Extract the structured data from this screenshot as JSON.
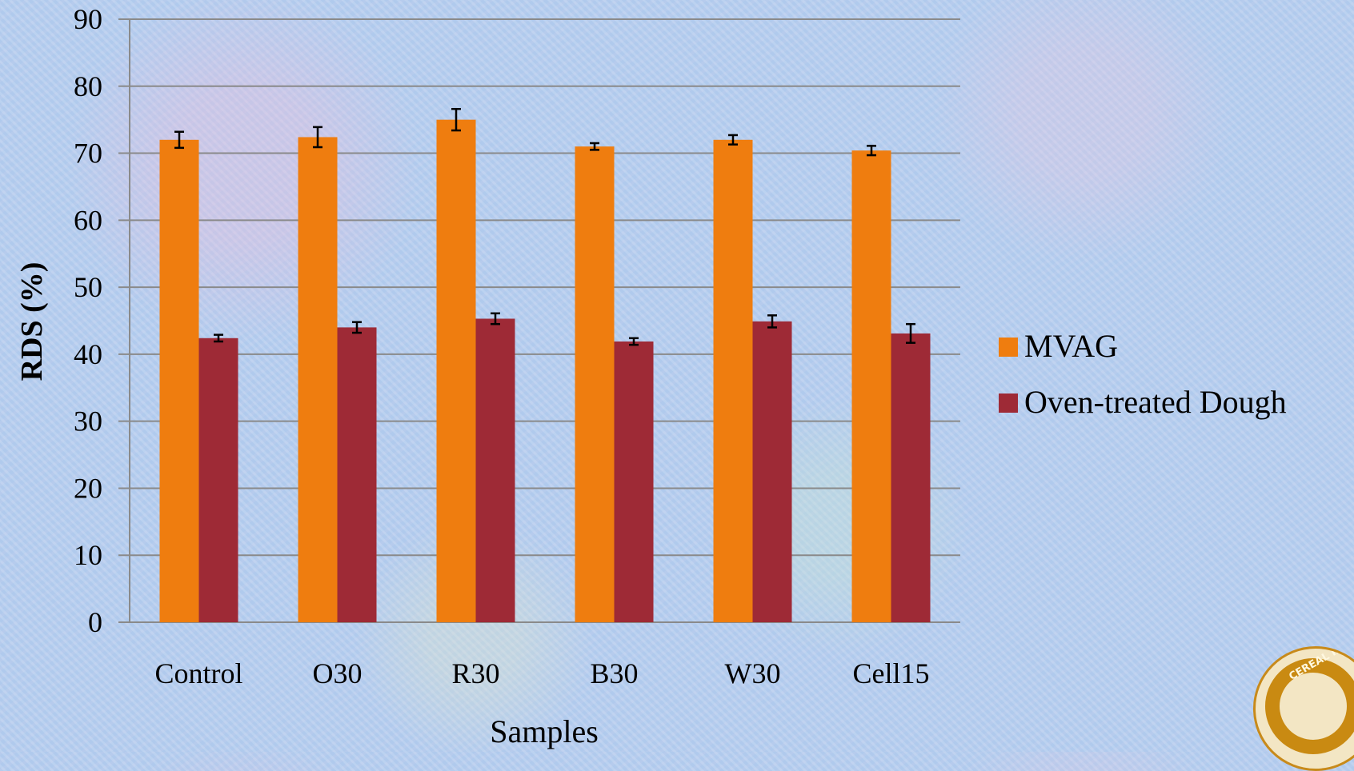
{
  "chart_data": {
    "type": "bar",
    "title": "",
    "xlabel": "Samples",
    "ylabel": "RDS (%)",
    "ylim": [
      0,
      90
    ],
    "yticks": [
      0,
      10,
      20,
      30,
      40,
      50,
      60,
      70,
      80,
      90
    ],
    "categories": [
      "Control",
      "O30",
      "R30",
      "B30",
      "W30",
      "Cell15"
    ],
    "series": [
      {
        "name": "MVAG",
        "color": "#ef7d0f",
        "values": [
          72.0,
          72.4,
          75.0,
          71.0,
          72.0,
          70.4
        ],
        "errors": [
          1.2,
          1.5,
          1.6,
          0.5,
          0.7,
          0.7
        ]
      },
      {
        "name": "Oven-treated Dough",
        "color": "#9e2a36",
        "values": [
          42.4,
          44.0,
          45.3,
          41.9,
          44.9,
          43.1
        ],
        "errors": [
          0.5,
          0.8,
          0.8,
          0.5,
          0.9,
          1.4
        ]
      }
    ],
    "grid": true,
    "legend_position": "right",
    "gridline_color": "#8a8a8a"
  },
  "logo": {
    "text": "CEREAL IN"
  }
}
